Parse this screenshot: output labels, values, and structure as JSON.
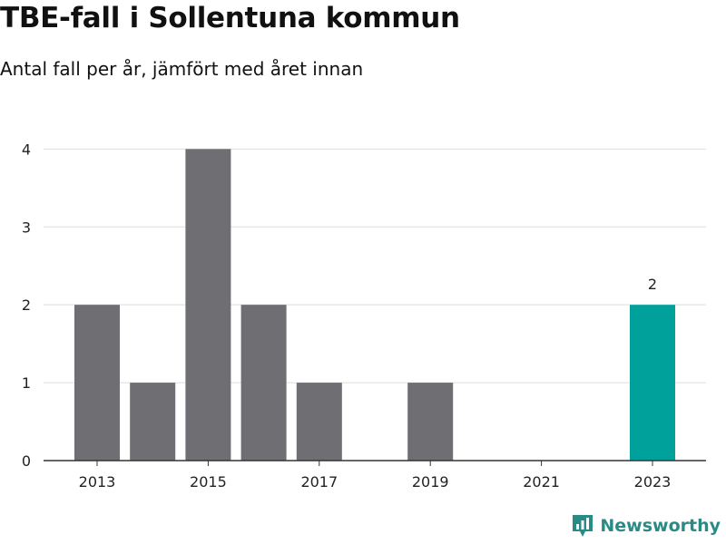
{
  "title": "TBE-fall i Sollentuna kommun",
  "subtitle": "Antal fall per år, jämfört med året innan",
  "brand": "Newsworthy",
  "colors": {
    "bar": "#6e6e73",
    "highlight": "#00a19a",
    "grid": "#dddddd",
    "axis": "#333333",
    "brand": "#2a8a86"
  },
  "chart_data": {
    "type": "bar",
    "title": "TBE-fall i Sollentuna kommun",
    "subtitle": "Antal fall per år, jämfört med året innan",
    "xlabel": "",
    "ylabel": "",
    "categories": [
      "2013",
      "2014",
      "2015",
      "2016",
      "2017",
      "2018",
      "2019",
      "2020",
      "2021",
      "2022",
      "2023"
    ],
    "values": [
      2,
      1,
      4,
      2,
      1,
      0,
      1,
      0,
      0,
      0,
      2
    ],
    "x_tick_labels": [
      "2013",
      "2015",
      "2017",
      "2019",
      "2021",
      "2023"
    ],
    "y_ticks": [
      0,
      1,
      2,
      3,
      4
    ],
    "ylim": [
      0,
      4.4
    ],
    "grid": true,
    "highlight_category": "2023",
    "data_labels": [
      {
        "category": "2023",
        "text": "2"
      }
    ],
    "legend": "none"
  }
}
